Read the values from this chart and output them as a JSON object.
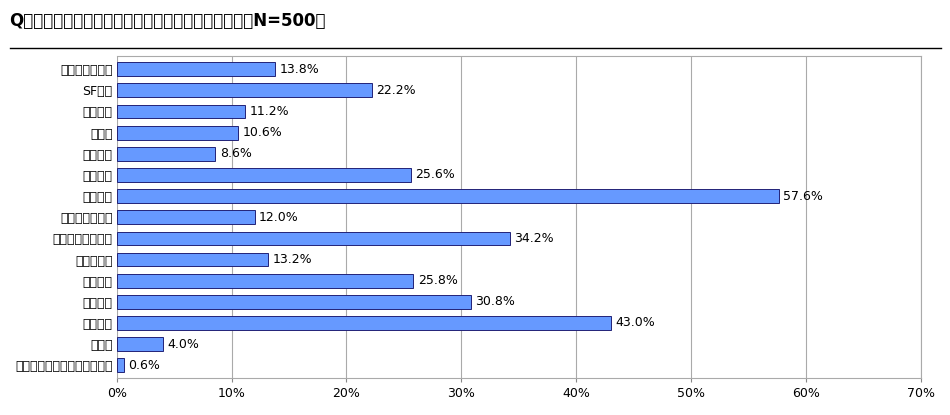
{
  "title": "Q．どんな種類の小説をこの秋、読みたいですか。（N=500）",
  "categories": [
    "アクション小説",
    "SF小説",
    "学園小説",
    "教育本",
    "経済小説",
    "時代小説",
    "推理小説",
    "ハードボイルド",
    "ファンタジー小説",
    "ホラー小説",
    "冒険小説",
    "歴史小説",
    "恋愛小説",
    "その他",
    "この秋に読みたい小説はない"
  ],
  "values": [
    13.8,
    22.2,
    11.2,
    10.6,
    8.6,
    25.6,
    57.6,
    12.0,
    34.2,
    13.2,
    25.8,
    30.8,
    43.0,
    4.0,
    0.6
  ],
  "bar_color": "#6699FF",
  "bar_edge_color": "#222277",
  "background_color": "#ffffff",
  "grid_color": "#aaaaaa",
  "xlim": [
    0,
    70
  ],
  "xticks": [
    0,
    10,
    20,
    30,
    40,
    50,
    60,
    70
  ],
  "title_fontsize": 12,
  "label_fontsize": 9,
  "value_fontsize": 9
}
